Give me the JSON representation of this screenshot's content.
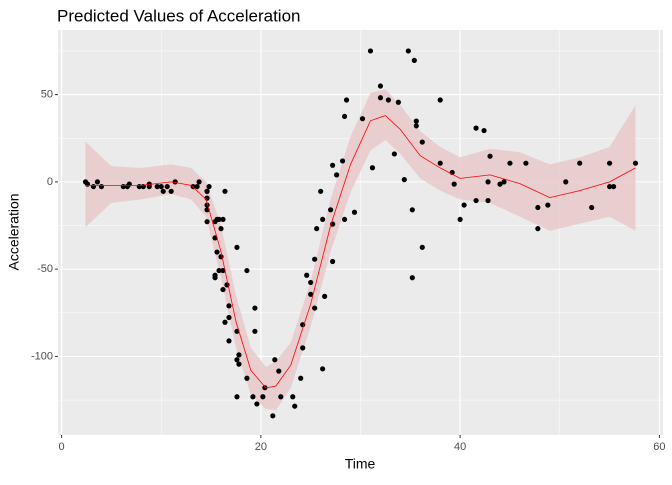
{
  "chart_data": {
    "type": "scatter",
    "title": "Predicted Values of Acceleration",
    "x_label": "Time",
    "y_label": "Acceleration",
    "x": [
      2.4,
      2.6,
      3.2,
      3.6,
      4.0,
      6.2,
      6.6,
      6.8,
      7.8,
      8.2,
      8.8,
      8.8,
      9.6,
      10.0,
      10.2,
      10.6,
      11.0,
      11.4,
      13.2,
      13.6,
      13.8,
      14.6,
      14.6,
      14.6,
      14.6,
      14.6,
      14.6,
      14.8,
      15.4,
      15.4,
      15.4,
      15.4,
      15.6,
      15.6,
      15.8,
      15.8,
      16.0,
      16.0,
      16.2,
      16.2,
      16.2,
      16.4,
      16.4,
      16.6,
      16.8,
      16.8,
      16.8,
      17.6,
      17.6,
      17.6,
      17.6,
      17.8,
      17.8,
      18.6,
      18.6,
      19.2,
      19.4,
      19.4,
      19.6,
      20.2,
      20.4,
      21.2,
      21.4,
      21.8,
      22.0,
      23.2,
      23.4,
      24.0,
      24.2,
      24.2,
      24.6,
      25.0,
      25.0,
      25.4,
      25.4,
      25.6,
      26.0,
      26.2,
      26.2,
      26.4,
      27.0,
      27.2,
      27.2,
      27.2,
      27.6,
      28.2,
      28.4,
      28.4,
      28.6,
      29.4,
      30.2,
      31.0,
      31.2,
      32.0,
      32.0,
      32.8,
      33.4,
      33.8,
      34.4,
      34.8,
      35.2,
      35.2,
      35.4,
      35.6,
      35.6,
      36.2,
      36.2,
      38.0,
      38.0,
      39.2,
      39.4,
      40.0,
      40.4,
      41.6,
      41.6,
      42.4,
      42.8,
      42.8,
      43.0,
      44.0,
      44.4,
      45.0,
      46.6,
      47.8,
      47.8,
      48.8,
      50.6,
      52.0,
      53.2,
      55.0,
      55.0,
      55.4,
      57.6
    ],
    "values": [
      0.0,
      -1.3,
      -2.7,
      0.0,
      -2.7,
      -2.7,
      -2.7,
      -1.3,
      -2.7,
      -2.7,
      -1.3,
      -2.7,
      -2.7,
      -2.7,
      -5.4,
      -2.7,
      -5.4,
      0.0,
      -2.7,
      -2.7,
      0.0,
      -13.3,
      -5.4,
      -5.4,
      -9.3,
      -16.0,
      -22.8,
      -2.7,
      -22.8,
      -32.1,
      -53.5,
      -54.9,
      -40.2,
      -21.5,
      -21.5,
      -50.8,
      -42.9,
      -26.8,
      -21.5,
      -50.8,
      -61.7,
      -5.4,
      -80.4,
      -59.0,
      -71.0,
      -91.1,
      -77.7,
      -37.5,
      -85.6,
      -123.1,
      -101.9,
      -99.1,
      -104.4,
      -112.5,
      -50.8,
      -123.1,
      -85.6,
      -72.3,
      -127.2,
      -123.1,
      -117.9,
      -134.0,
      -101.9,
      -108.4,
      -123.1,
      -123.1,
      -128.5,
      -112.5,
      -95.1,
      -81.8,
      -53.5,
      -64.4,
      -57.6,
      -72.3,
      -44.3,
      -26.8,
      -5.4,
      -107.1,
      -21.5,
      -65.6,
      -16.0,
      -45.6,
      -24.2,
      9.5,
      4.0,
      12.0,
      -21.5,
      37.5,
      46.9,
      -17.4,
      36.2,
      75.0,
      8.1,
      54.9,
      48.2,
      46.9,
      16.0,
      45.6,
      1.3,
      75.0,
      -16.0,
      -54.9,
      69.6,
      34.8,
      32.1,
      -37.5,
      22.8,
      46.9,
      10.7,
      5.4,
      -1.3,
      -21.5,
      -13.3,
      30.8,
      -10.7,
      29.4,
      0.0,
      -10.7,
      14.7,
      -1.3,
      0.0,
      10.7,
      10.7,
      -26.8,
      -14.7,
      -13.3,
      0.0,
      10.7,
      -14.7,
      -2.7,
      10.7,
      -2.7,
      10.7
    ],
    "color": "#000000",
    "fit": {
      "x": [
        2.4,
        5,
        8,
        11,
        13,
        14.5,
        16,
        17.5,
        19,
        20.5,
        21.5,
        23,
        25,
        27,
        29,
        31,
        32.5,
        34,
        36,
        38,
        40,
        43,
        46,
        49,
        52,
        55,
        57.6
      ],
      "values": [
        -2,
        -2,
        -2,
        0,
        -2,
        -10,
        -40,
        -80,
        -108,
        -118,
        -117,
        -105,
        -70,
        -25,
        10,
        35,
        38,
        30,
        15,
        8,
        2,
        4,
        -1,
        -9,
        -5,
        0,
        8
      ],
      "lower": [
        -26,
        -12,
        -10,
        -7,
        -10,
        -20,
        -55,
        -95,
        -122,
        -130,
        -131,
        -118,
        -83,
        -40,
        -6,
        18,
        24,
        16,
        2,
        -5,
        -10,
        -12,
        -20,
        -28,
        -24,
        -20,
        -28
      ],
      "upper": [
        23,
        9,
        8,
        10,
        8,
        0,
        -25,
        -65,
        -95,
        -106,
        -103,
        -92,
        -57,
        -10,
        26,
        51,
        53,
        44,
        29,
        20,
        14,
        19,
        17,
        10,
        14,
        20,
        44
      ],
      "color": "#ff0000",
      "fill": "#e8c9ca"
    },
    "xlim": [
      -0.36,
      60.36
    ],
    "xticks": [
      0,
      20,
      40,
      60
    ],
    "ylim": [
      -145,
      87
    ],
    "yticks": [
      -100,
      -50,
      0,
      50
    ],
    "x_minor_grid": [
      10,
      30,
      50
    ],
    "y_minor_grid": [
      -125,
      -75,
      -25,
      25,
      75
    ],
    "grid": true
  }
}
